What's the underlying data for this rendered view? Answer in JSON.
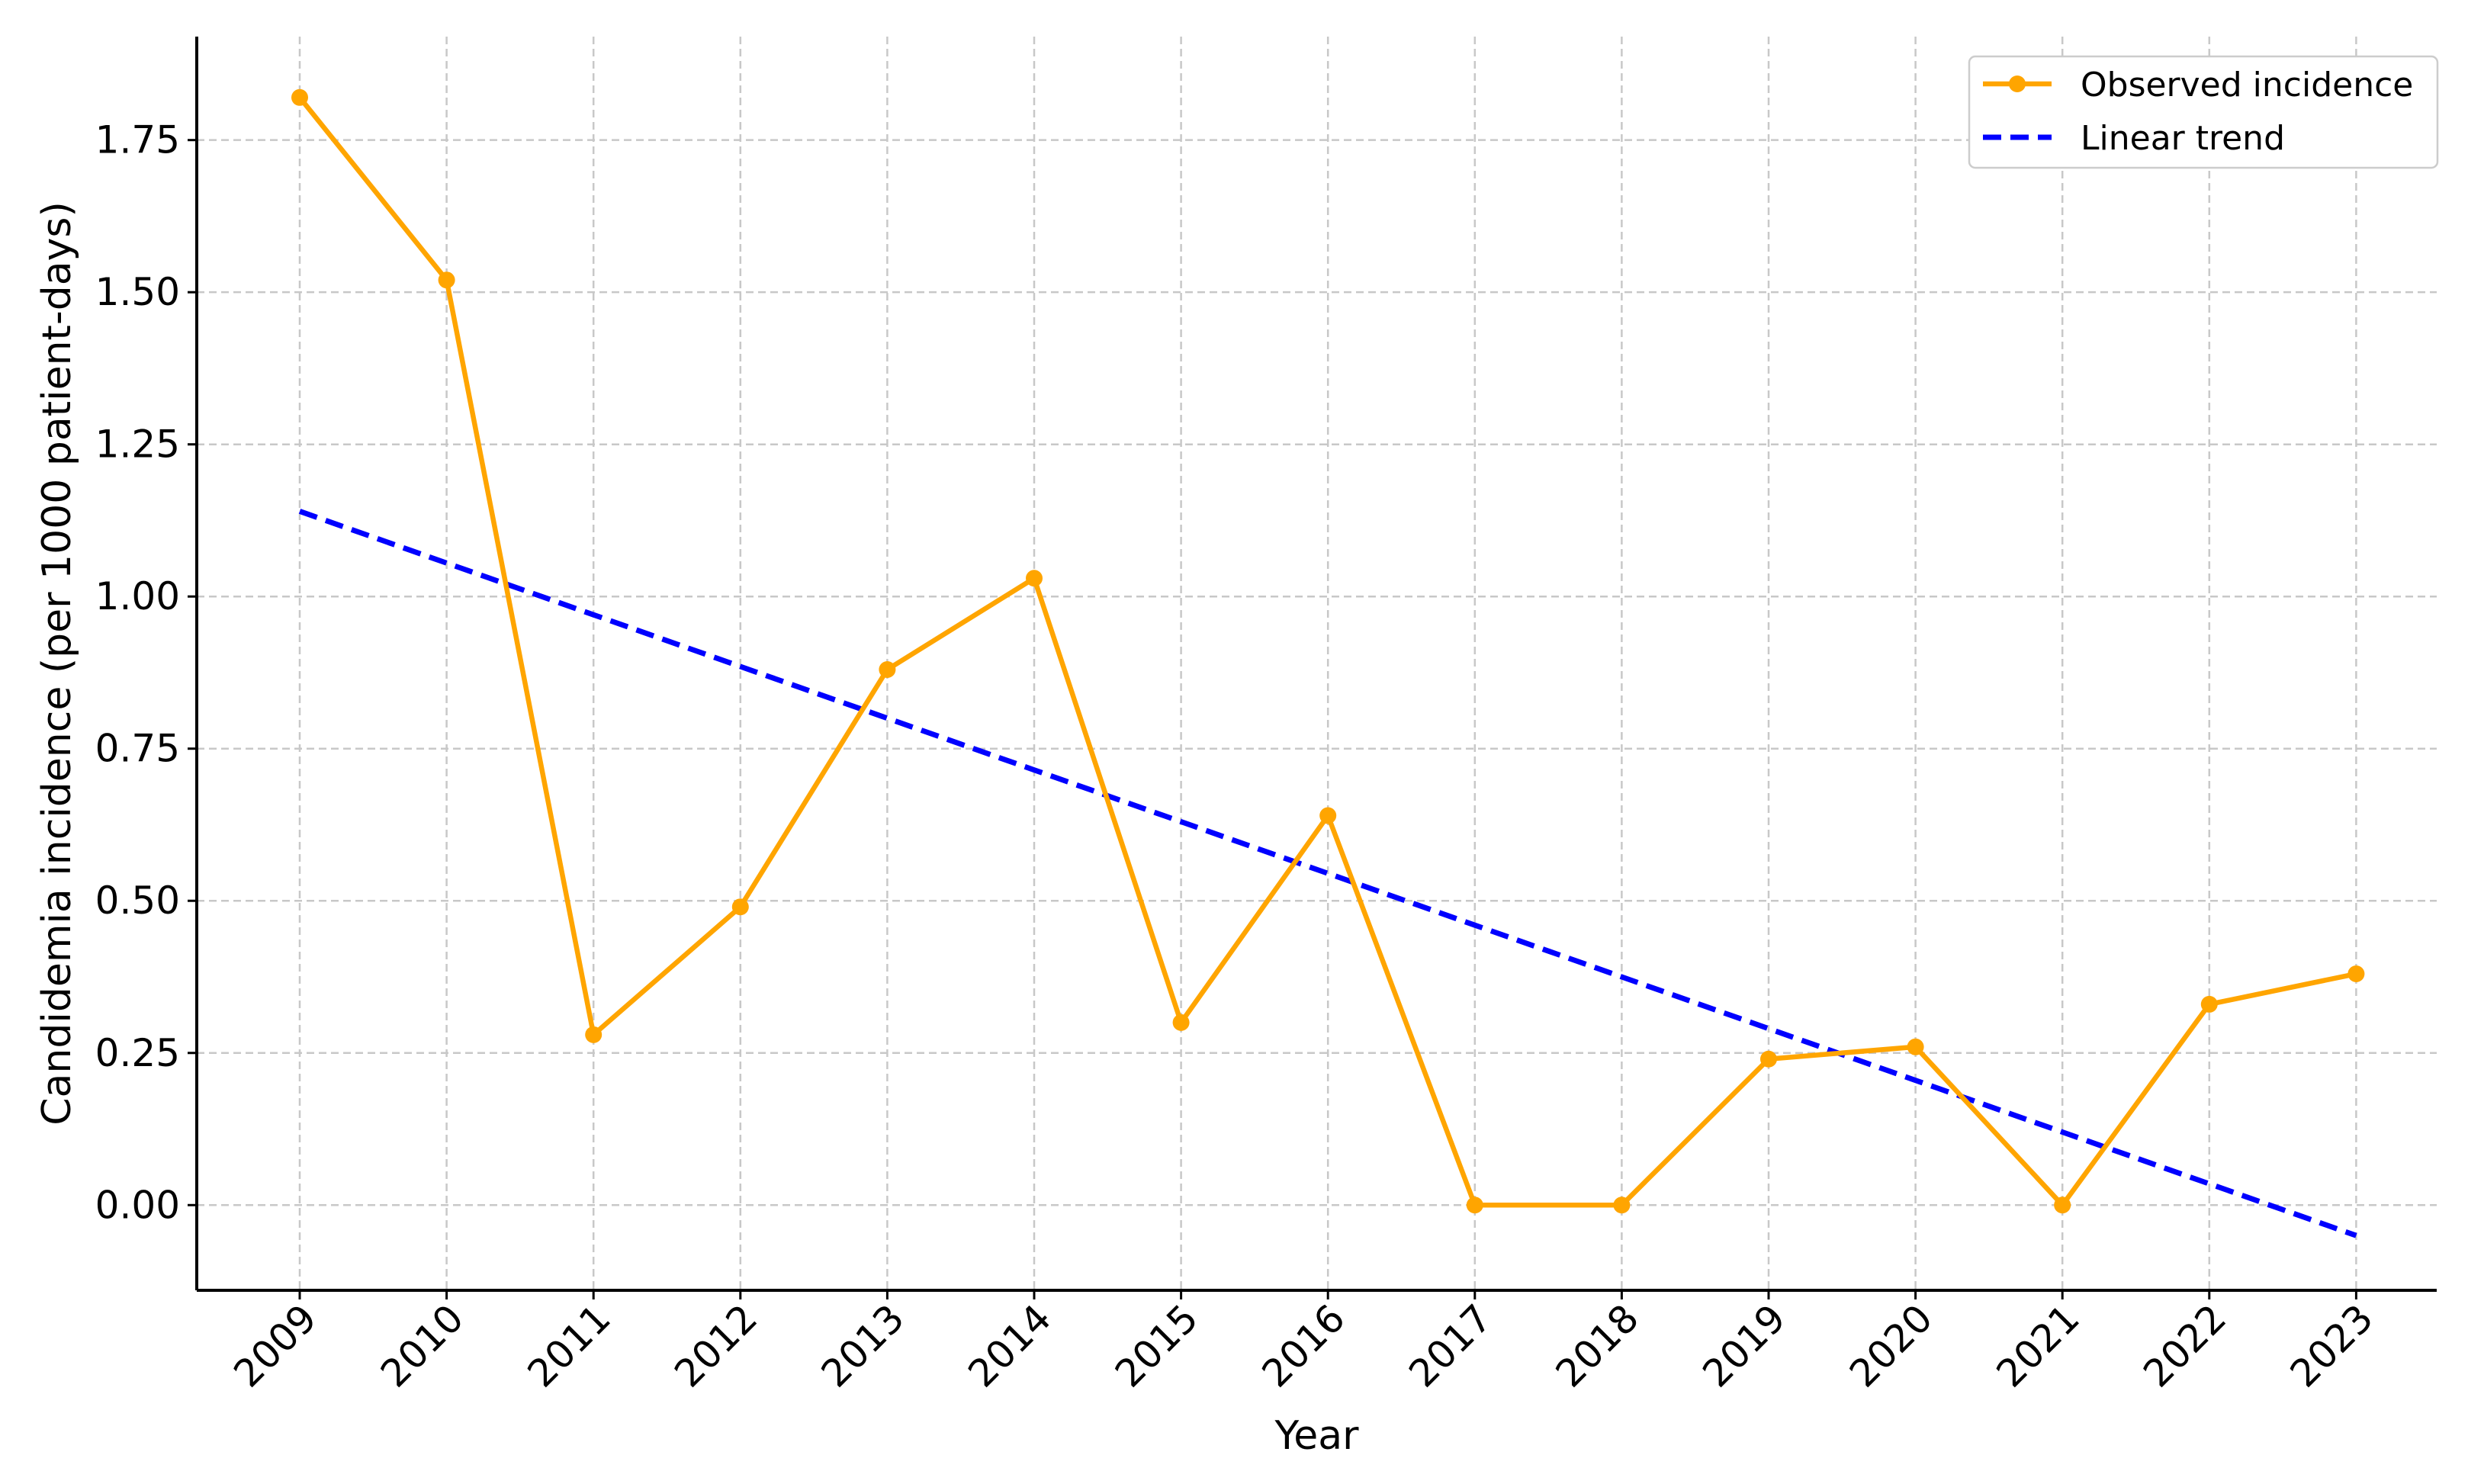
{
  "chart_data": {
    "type": "line",
    "xlabel": "Year",
    "ylabel": "Candidemia incidence (per 1000 patient-days)",
    "categories": [
      "2009",
      "2010",
      "2011",
      "2012",
      "2013",
      "2014",
      "2015",
      "2016",
      "2017",
      "2018",
      "2019",
      "2020",
      "2021",
      "2022",
      "2023"
    ],
    "ylim": [
      -0.14,
      1.92
    ],
    "yticks": [
      0.0,
      0.25,
      0.5,
      0.75,
      1.0,
      1.25,
      1.5,
      1.75
    ],
    "ytick_labels": [
      "0.00",
      "0.25",
      "0.50",
      "0.75",
      "1.00",
      "1.25",
      "1.50",
      "1.75"
    ],
    "grid": true,
    "legend_position": "top-right",
    "series": [
      {
        "name": "Observed incidence",
        "style": "solid-line-with-markers",
        "color": "#FFA500",
        "values": [
          1.82,
          1.52,
          0.28,
          0.49,
          0.88,
          1.03,
          0.3,
          0.64,
          0.0,
          0.0,
          0.24,
          0.26,
          0.0,
          0.33,
          0.38
        ]
      },
      {
        "name": "Linear trend",
        "style": "dashed-line",
        "color": "#0000FF",
        "values": [
          1.14,
          1.055,
          0.97,
          0.885,
          0.8,
          0.715,
          0.63,
          0.545,
          0.46,
          0.375,
          0.29,
          0.205,
          0.12,
          0.035,
          -0.05
        ]
      }
    ]
  }
}
